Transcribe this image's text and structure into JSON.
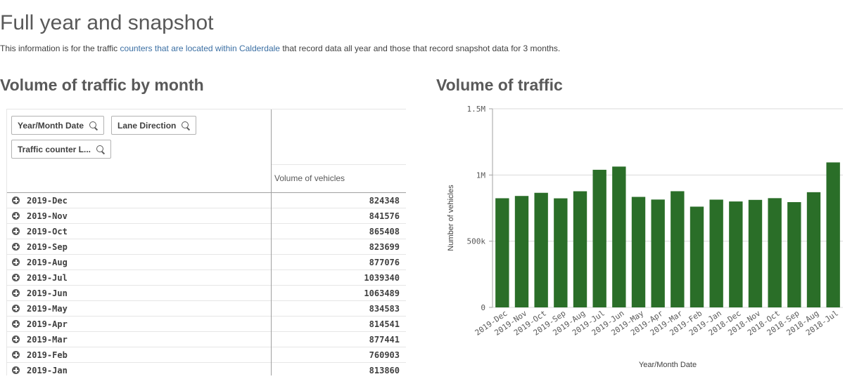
{
  "header": {
    "title": "Full year and snapshot",
    "intro_before": "This information is for the traffic ",
    "intro_link": "counters that are located within Calderdale",
    "intro_after": " that record data all year and those that record snapshot data for 3 months."
  },
  "left_panel": {
    "title": "Volume of traffic by month",
    "filters": [
      {
        "label": "Year/Month Date",
        "icon": "search-icon"
      },
      {
        "label": "Lane Direction",
        "icon": "search-icon"
      },
      {
        "label": "Traffic counter L...",
        "icon": "search-icon"
      }
    ],
    "measure_label": "Volume of vehicles",
    "rows": [
      {
        "label": "2019-Dec",
        "value": "824348"
      },
      {
        "label": "2019-Nov",
        "value": "841576"
      },
      {
        "label": "2019-Oct",
        "value": "865408"
      },
      {
        "label": "2019-Sep",
        "value": "823699"
      },
      {
        "label": "2019-Aug",
        "value": "877076"
      },
      {
        "label": "2019-Jul",
        "value": "1039340"
      },
      {
        "label": "2019-Jun",
        "value": "1063489"
      },
      {
        "label": "2019-May",
        "value": "834583"
      },
      {
        "label": "2019-Apr",
        "value": "814541"
      },
      {
        "label": "2019-Mar",
        "value": "877441"
      },
      {
        "label": "2019-Feb",
        "value": "760903"
      },
      {
        "label": "2019-Jan",
        "value": "813860"
      }
    ]
  },
  "right_panel": {
    "title": "Volume of traffic"
  },
  "chart_data": {
    "type": "bar",
    "categories": [
      "2019-Dec",
      "2019-Nov",
      "2019-Oct",
      "2019-Sep",
      "2019-Aug",
      "2019-Jul",
      "2019-Jun",
      "2019-May",
      "2019-Apr",
      "2019-Mar",
      "2019-Feb",
      "2019-Jan",
      "2018-Dec",
      "2018-Nov",
      "2018-Oct",
      "2018-Sep",
      "2018-Aug",
      "2018-Jul"
    ],
    "values": [
      824348,
      841576,
      865408,
      823699,
      877076,
      1039340,
      1063489,
      834583,
      814541,
      877441,
      760903,
      813860,
      800000,
      812000,
      825000,
      795000,
      870000,
      1095000
    ],
    "xlabel": "Year/Month Date",
    "ylabel": "Number of vehicles",
    "ylim": [
      0,
      1500000
    ],
    "yticks": [
      {
        "value": 0,
        "label": "0"
      },
      {
        "value": 500000,
        "label": "500k"
      },
      {
        "value": 1000000,
        "label": "1M"
      },
      {
        "value": 1500000,
        "label": "1.5M"
      }
    ],
    "grid": true,
    "bar_color": "#2a6e28"
  }
}
